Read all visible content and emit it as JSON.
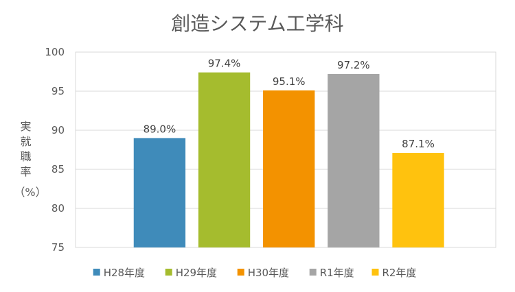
{
  "chart_data": {
    "type": "bar",
    "title": "創造システム工学科",
    "ylabel": "実就職率（%）",
    "ylabel_lines": [
      "実",
      "就",
      "職",
      "率",
      "（%）"
    ],
    "categories": [
      "H28年度",
      "H29年度",
      "H30年度",
      "R1年度",
      "R2年度"
    ],
    "values": [
      89.0,
      97.4,
      95.1,
      97.2,
      87.1
    ],
    "data_labels": [
      "89.0%",
      "97.4%",
      "95.1%",
      "97.2%",
      "87.1%"
    ],
    "colors": [
      "#3F8BBA",
      "#A5BC2E",
      "#F39200",
      "#A5A5A5",
      "#FFC20E"
    ],
    "ylim": [
      75,
      100
    ],
    "yticks": [
      75,
      80,
      85,
      90,
      95,
      100
    ],
    "grid": true,
    "legend_position": "bottom"
  }
}
